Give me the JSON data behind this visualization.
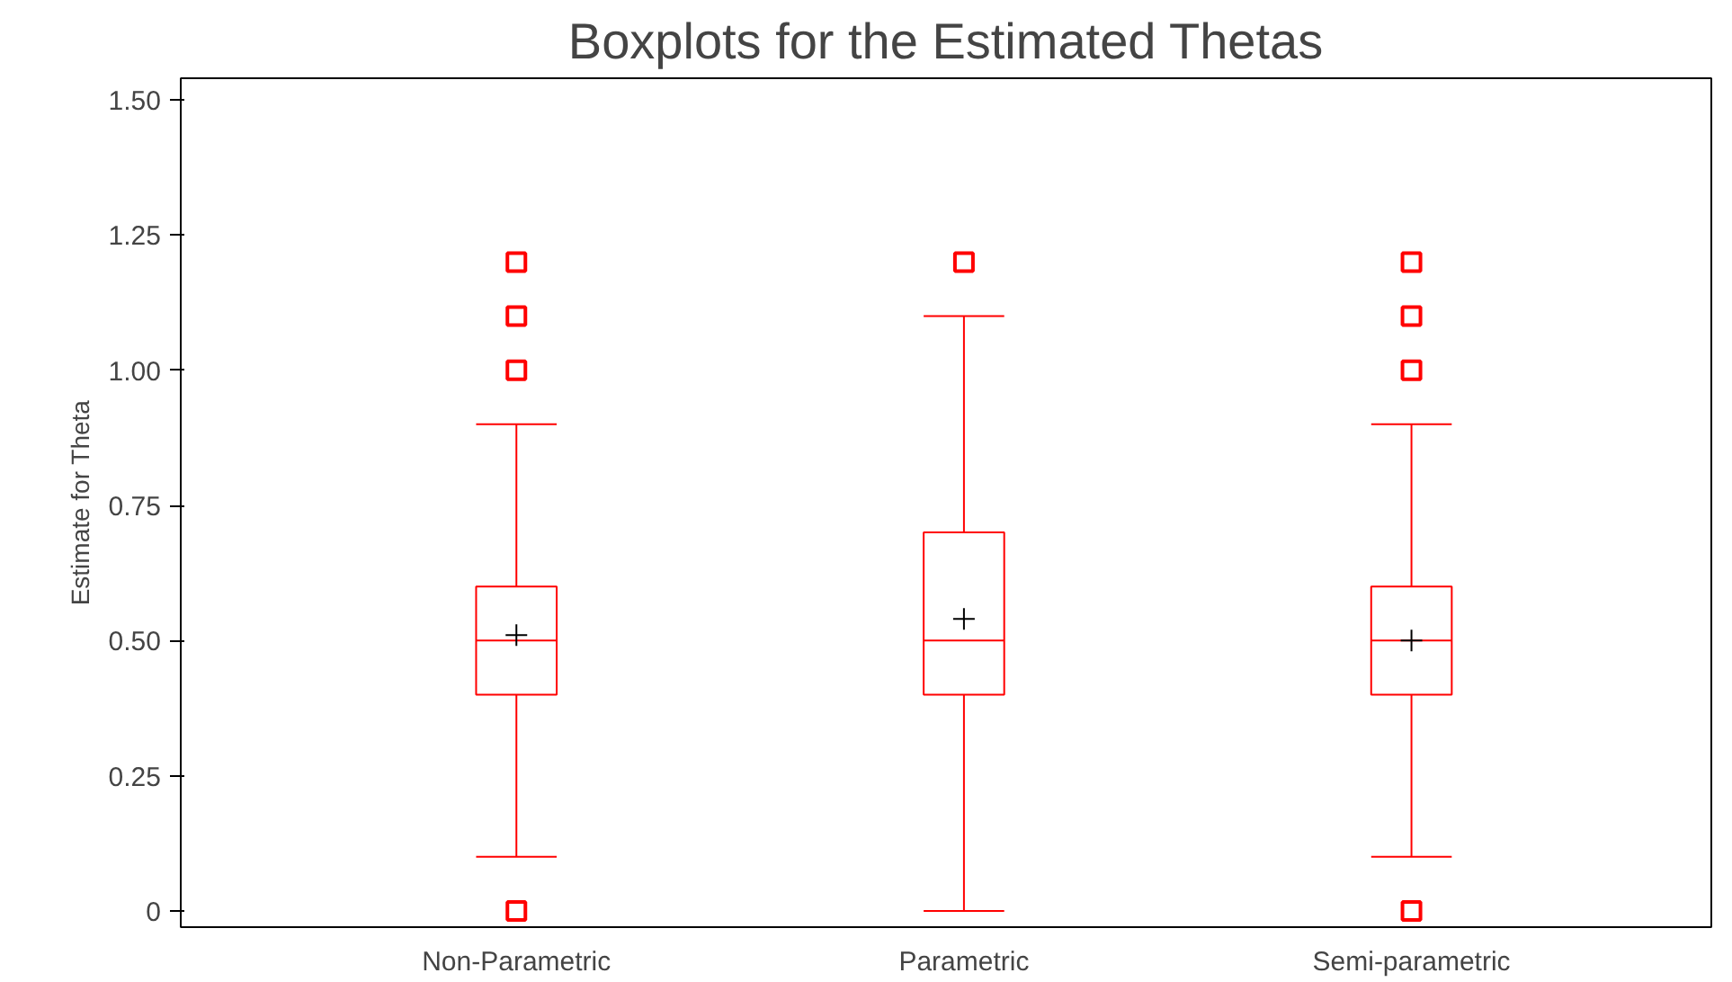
{
  "chart_data": {
    "type": "box",
    "title": "Boxplots for the Estimated Thetas",
    "ylabel": "Estimate for Theta",
    "categories": [
      "Non-Parametric",
      "Parametric",
      "Semi-parametric"
    ],
    "boxes": [
      {
        "low": 0.1,
        "q1": 0.4,
        "median": 0.5,
        "q3": 0.6,
        "high": 0.9,
        "mean": 0.51,
        "outliers": [
          0,
          1.0,
          1.1,
          1.2
        ]
      },
      {
        "low": 0,
        "q1": 0.4,
        "median": 0.5,
        "q3": 0.7,
        "high": 1.1,
        "mean": 0.54,
        "outliers": [
          1.2
        ]
      },
      {
        "low": 0.1,
        "q1": 0.4,
        "median": 0.5,
        "q3": 0.6,
        "high": 0.9,
        "mean": 0.5,
        "outliers": [
          0,
          1.0,
          1.1,
          1.2
        ]
      }
    ],
    "color": "#ff0000",
    "ylim": [
      -0.03,
      1.54
    ],
    "yticks": [
      0,
      0.25,
      {
        "value": 0.5,
        "label": "0.50"
      },
      0.75,
      {
        "value": 1.0,
        "label": "1.00"
      },
      1.25,
      {
        "value": 1.5,
        "label": "1.50"
      }
    ],
    "grid": false
  }
}
